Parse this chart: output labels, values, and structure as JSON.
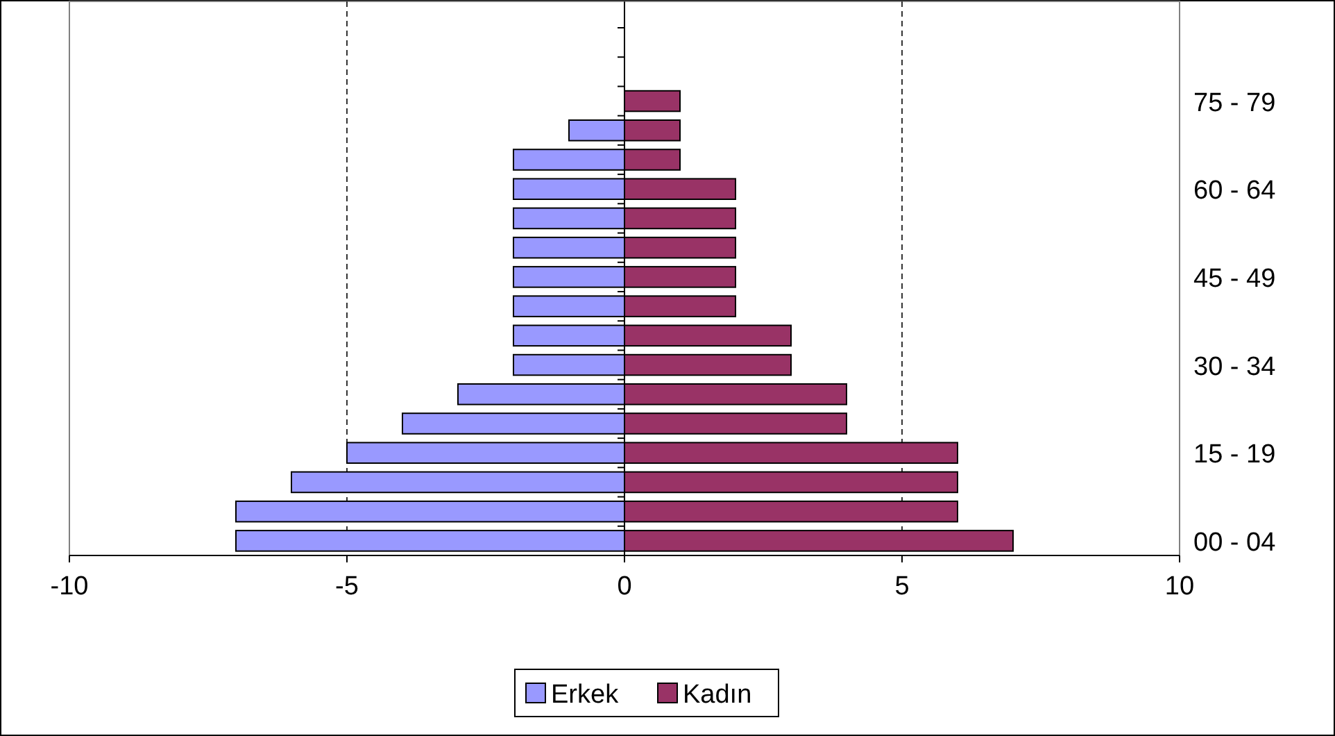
{
  "chart_data": {
    "type": "bar",
    "orientation": "horizontal",
    "categories": [
      null,
      null,
      "75 - 79",
      null,
      null,
      "60 - 64",
      null,
      null,
      "45 - 49",
      null,
      null,
      "30 - 34",
      null,
      null,
      "15 - 19",
      null,
      null,
      "00 - 04"
    ],
    "series": [
      {
        "name": "Erkek",
        "color": "#9999ff",
        "values": [
          0,
          0,
          0,
          -1,
          -2,
          -2,
          -2,
          -2,
          -2,
          -2,
          -2,
          -2,
          -3,
          -4,
          -5,
          -6,
          -7,
          -7
        ]
      },
      {
        "name": "Kadın",
        "color": "#993366",
        "values": [
          0,
          0,
          1,
          1,
          1,
          2,
          2,
          2,
          2,
          2,
          3,
          3,
          4,
          4,
          6,
          6,
          6,
          7
        ]
      }
    ],
    "stacked": true,
    "xlim": [
      -10,
      10
    ],
    "xticks": [
      -10,
      -5,
      0,
      5,
      10
    ],
    "grid": "x",
    "legend": "bottom"
  }
}
